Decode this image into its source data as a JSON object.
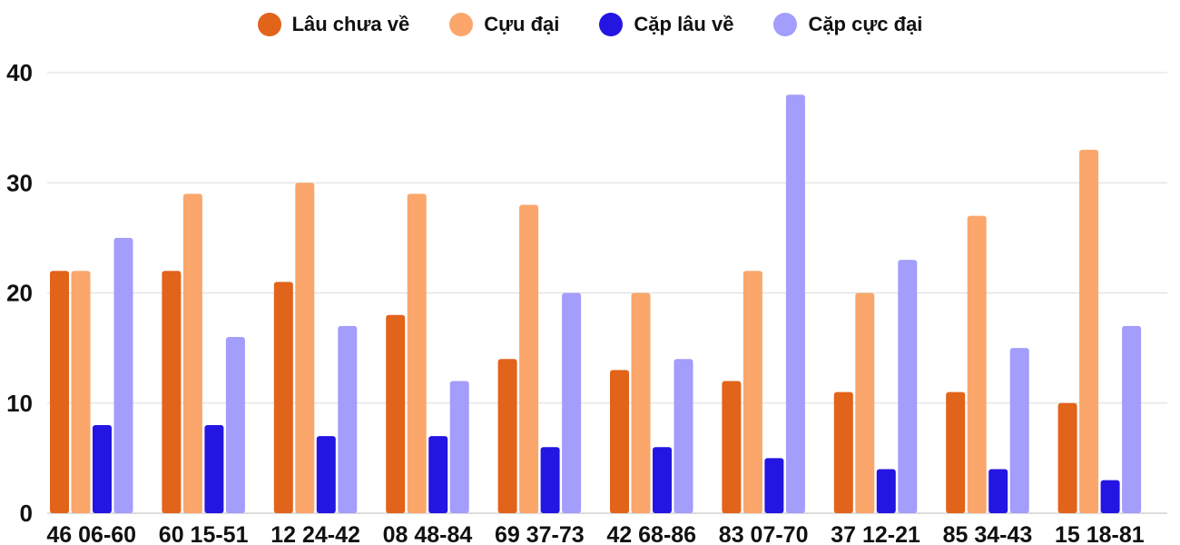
{
  "chart_data": {
    "type": "bar",
    "title": "",
    "xlabel": "",
    "ylabel": "",
    "ylim": [
      0,
      40
    ],
    "yticks": [
      0,
      10,
      20,
      30,
      40
    ],
    "grid": true,
    "legend_position": "top-center",
    "categories": [
      "46 06-60",
      "60 15-51",
      "12 24-42",
      "08 48-84",
      "69 37-73",
      "42 68-86",
      "83 07-70",
      "37 12-21",
      "85 34-43",
      "15 18-81"
    ],
    "series": [
      {
        "name": "Lâu chưa về",
        "color": "#e2631a",
        "values": [
          22,
          22,
          21,
          18,
          14,
          13,
          12,
          11,
          11,
          10
        ]
      },
      {
        "name": "Cựu đại",
        "color": "#fba66b",
        "values": [
          22,
          29,
          30,
          29,
          28,
          20,
          22,
          20,
          27,
          33
        ]
      },
      {
        "name": "Cặp lâu về",
        "color": "#2415e2",
        "values": [
          8,
          8,
          7,
          7,
          6,
          6,
          5,
          4,
          4,
          3
        ]
      },
      {
        "name": "Cặp cực đại",
        "color": "#a39dfb",
        "values": [
          25,
          16,
          17,
          12,
          20,
          14,
          38,
          23,
          15,
          17
        ]
      }
    ]
  }
}
